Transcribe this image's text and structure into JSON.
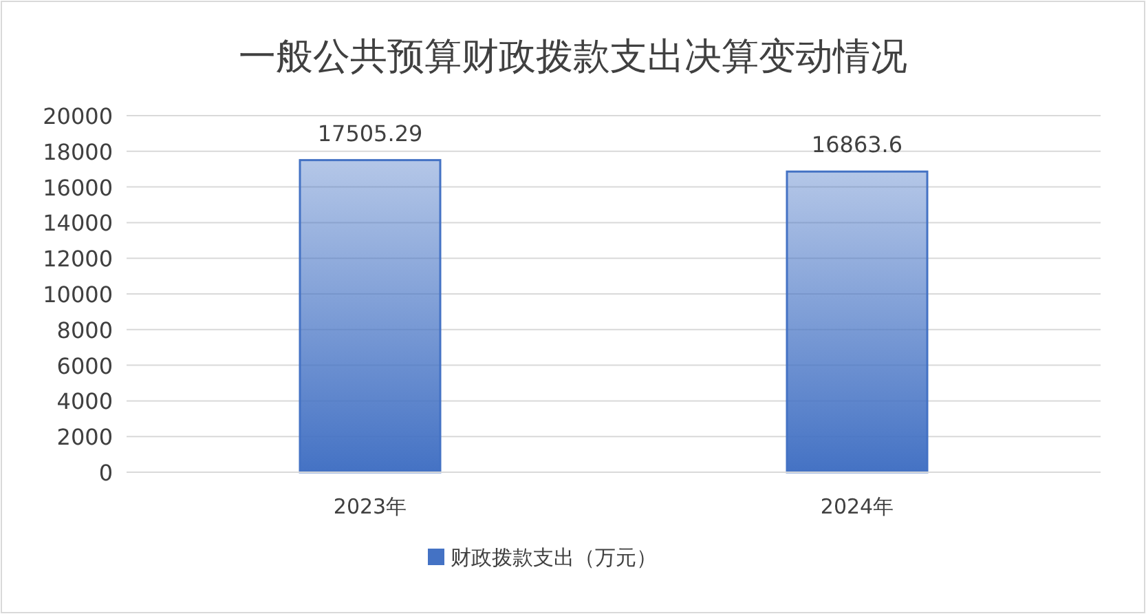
{
  "chart_data": {
    "type": "bar",
    "title": "一般公共预算财政拨款支出决算变动情况",
    "categories": [
      "2023年",
      "2024年"
    ],
    "series": [
      {
        "name": "财政拨款支出（万元）",
        "color": "#4472c4",
        "values": [
          17505.29,
          16863.6
        ]
      }
    ],
    "ylim": [
      0,
      20000
    ],
    "yticks": [
      0,
      2000,
      4000,
      6000,
      8000,
      10000,
      12000,
      14000,
      16000,
      18000,
      20000
    ],
    "grid": "y",
    "legend": "bottom",
    "data_labels": true
  }
}
